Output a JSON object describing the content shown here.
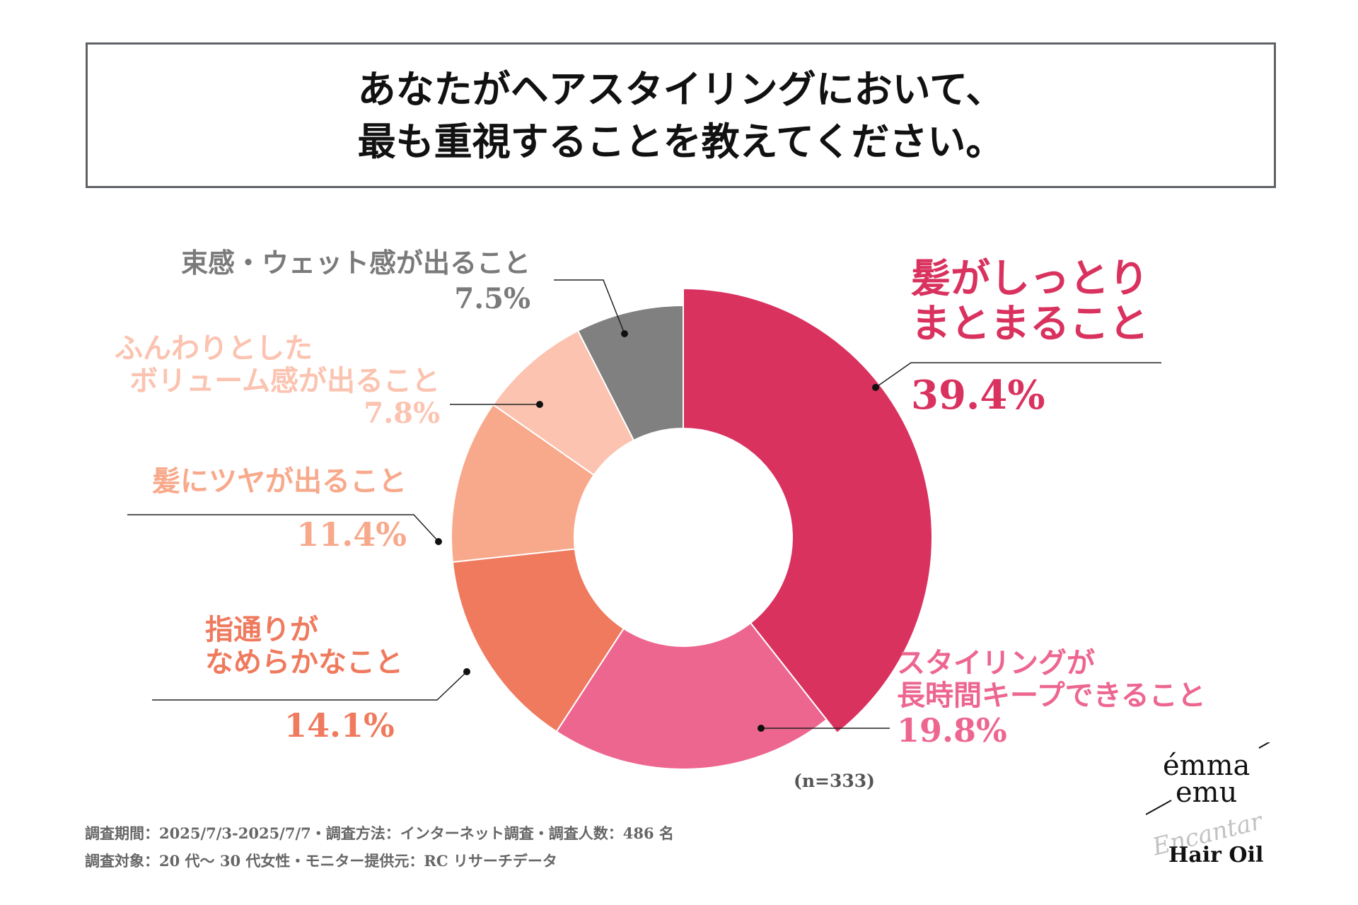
{
  "title": {
    "line1": "あなたがヘアスタイリングにおいて、",
    "line2": "最も重視することを教えてください。"
  },
  "chart_data": {
    "type": "pie",
    "variant": "donut",
    "sample_size": "(n=333)",
    "unit": "%",
    "slices": [
      {
        "label_lines": [
          "髪がしっとり",
          "まとまること"
        ],
        "value": 39.4,
        "value_label": "39.4%",
        "color": "#d9325f"
      },
      {
        "label_lines": [
          "スタイリングが",
          "長時間キープできること"
        ],
        "value": 19.8,
        "value_label": "19.8%",
        "color": "#ed6690"
      },
      {
        "label_lines": [
          "指通りが",
          "なめらかなこと"
        ],
        "value": 14.1,
        "value_label": "14.1%",
        "color": "#ef7a5e"
      },
      {
        "label_lines": [
          "髪にツヤが出ること"
        ],
        "value": 11.4,
        "value_label": "11.4%",
        "color": "#f8a98b"
      },
      {
        "label_lines": [
          "ふんわりとした",
          "ボリューム感が出ること"
        ],
        "value": 7.8,
        "value_label": "7.8%",
        "color": "#fbc3b0"
      },
      {
        "label_lines": [
          "束感・ウェット感が出ること"
        ],
        "value": 7.5,
        "value_label": "7.5%",
        "color": "#808080"
      }
    ]
  },
  "footnotes": {
    "line1": "調査期間：2025/7/3-2025/7/7・調査方法：インターネット調査・調査人数：486 名",
    "line2": "調査対象：20 代〜 30 代女性・モニター提供元：RC リサーチデータ"
  },
  "logo": {
    "brand_line1": "émma",
    "brand_line2": "emu",
    "script": "Encantar",
    "product": "Hair Oil"
  }
}
